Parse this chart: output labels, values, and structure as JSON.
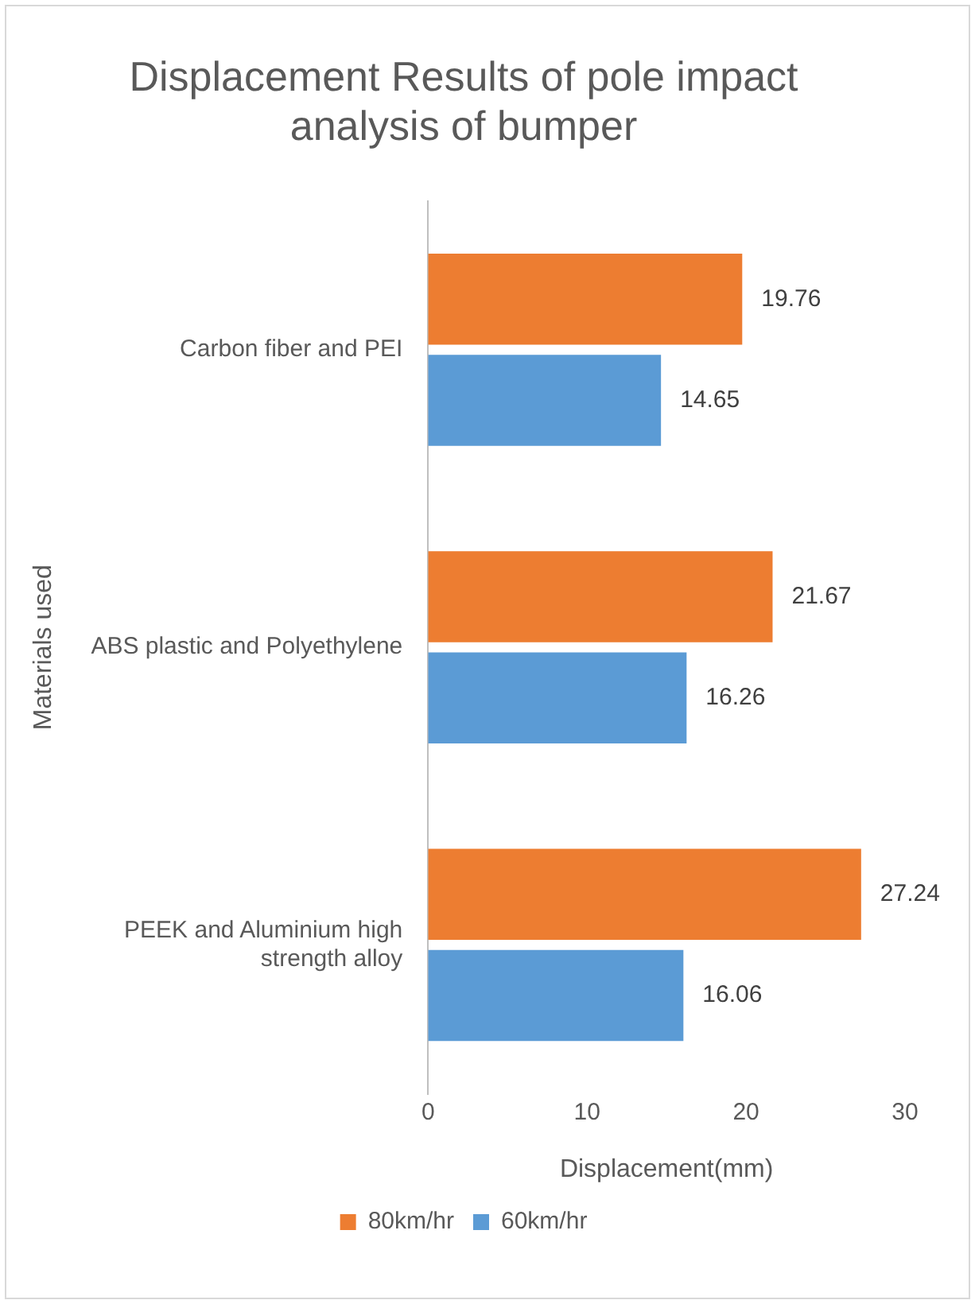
{
  "chart_data": {
    "type": "bar",
    "orientation": "horizontal",
    "title": "Displacement Results of pole impact analysis of bumper",
    "xlabel": "Displacement(mm)",
    "ylabel": "Materials used",
    "categories": [
      "Carbon fiber and PEI",
      "ABS plastic and Polyethylene",
      "PEEK and Aluminium high strength alloy"
    ],
    "series": [
      {
        "name": "80km/hr",
        "color": "#ed7d31",
        "values": [
          19.76,
          21.67,
          27.24
        ]
      },
      {
        "name": "60km/hr",
        "color": "#5b9bd5",
        "values": [
          14.65,
          16.26,
          16.06
        ]
      }
    ],
    "xlim": [
      0,
      30
    ],
    "xticks": [
      0,
      10,
      20,
      30
    ],
    "grid": false,
    "legend": "bottom",
    "data_labels": true
  }
}
